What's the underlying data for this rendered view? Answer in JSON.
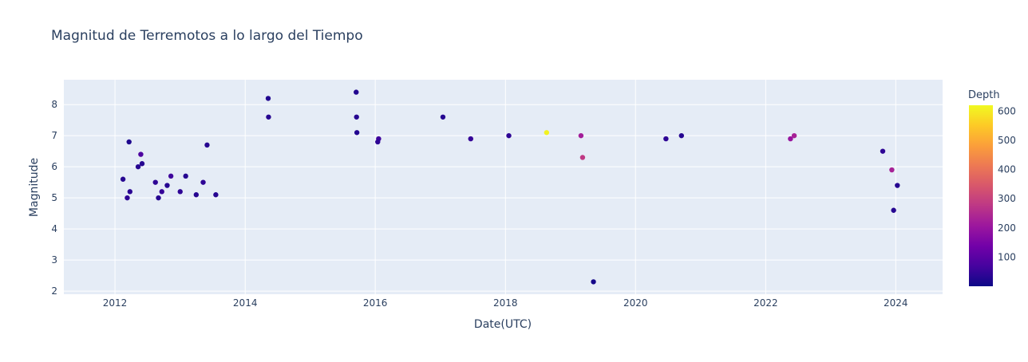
{
  "chart_data": {
    "type": "scatter",
    "title": "Magnitud de Terremotos a lo largo del Tiempo",
    "xlabel": "Date(UTC)",
    "ylabel": "Magnitude",
    "x_ticks": [
      "2012",
      "2014",
      "2016",
      "2018",
      "2020",
      "2022",
      "2024"
    ],
    "y_ticks": [
      2,
      3,
      4,
      5,
      6,
      7,
      8
    ],
    "xlim": [
      "2011-03-20",
      "2024-09-20"
    ],
    "ylim": [
      1.9,
      8.8
    ],
    "grid": true,
    "colorbar": {
      "title": "Depth",
      "range": [
        0,
        620
      ],
      "ticks": [
        100,
        200,
        300,
        400,
        500,
        600
      ],
      "colorscale": [
        "#0d0887",
        "#46039f",
        "#7201a8",
        "#9c179e",
        "#bd3786",
        "#d8576b",
        "#ed7953",
        "#fb9f3a",
        "#fdca26",
        "#f0f921"
      ]
    },
    "points": [
      {
        "x": "2012-02-15",
        "y": 5.6,
        "d": 30
      },
      {
        "x": "2012-03-10",
        "y": 5.0,
        "d": 40
      },
      {
        "x": "2012-03-20",
        "y": 6.8,
        "d": 20
      },
      {
        "x": "2012-03-25",
        "y": 5.2,
        "d": 35
      },
      {
        "x": "2012-05-10",
        "y": 6.0,
        "d": 30
      },
      {
        "x": "2012-05-25",
        "y": 6.4,
        "d": 80
      },
      {
        "x": "2012-06-01",
        "y": 6.1,
        "d": 30
      },
      {
        "x": "2012-08-15",
        "y": 5.5,
        "d": 40
      },
      {
        "x": "2012-09-01",
        "y": 5.0,
        "d": 30
      },
      {
        "x": "2012-09-20",
        "y": 5.2,
        "d": 50
      },
      {
        "x": "2012-10-20",
        "y": 5.4,
        "d": 30
      },
      {
        "x": "2012-11-10",
        "y": 5.7,
        "d": 60
      },
      {
        "x": "2013-01-01",
        "y": 5.2,
        "d": 40
      },
      {
        "x": "2013-02-01",
        "y": 5.7,
        "d": 30
      },
      {
        "x": "2013-04-01",
        "y": 5.1,
        "d": 30
      },
      {
        "x": "2013-05-10",
        "y": 5.5,
        "d": 40
      },
      {
        "x": "2013-06-01",
        "y": 6.7,
        "d": 30
      },
      {
        "x": "2013-07-20",
        "y": 5.1,
        "d": 30
      },
      {
        "x": "2014-05-10",
        "y": 8.2,
        "d": 25
      },
      {
        "x": "2014-05-12",
        "y": 7.6,
        "d": 30
      },
      {
        "x": "2015-09-16",
        "y": 8.4,
        "d": 25
      },
      {
        "x": "2015-09-18",
        "y": 7.6,
        "d": 30
      },
      {
        "x": "2015-09-20",
        "y": 7.1,
        "d": 25
      },
      {
        "x": "2016-01-20",
        "y": 6.9,
        "d": 60
      },
      {
        "x": "2016-01-15",
        "y": 6.8,
        "d": 40
      },
      {
        "x": "2017-01-15",
        "y": 7.6,
        "d": 30
      },
      {
        "x": "2017-06-20",
        "y": 6.9,
        "d": 50
      },
      {
        "x": "2018-01-20",
        "y": 7.0,
        "d": 40
      },
      {
        "x": "2018-08-20",
        "y": 7.1,
        "d": 610
      },
      {
        "x": "2019-05-10",
        "y": 2.3,
        "d": 10
      },
      {
        "x": "2019-03-01",
        "y": 7.0,
        "d": 220
      },
      {
        "x": "2019-03-10",
        "y": 6.3,
        "d": 280
      },
      {
        "x": "2020-06-20",
        "y": 6.9,
        "d": 40
      },
      {
        "x": "2020-09-15",
        "y": 7.0,
        "d": 30
      },
      {
        "x": "2022-05-20",
        "y": 6.9,
        "d": 200
      },
      {
        "x": "2022-06-10",
        "y": 7.0,
        "d": 230
      },
      {
        "x": "2023-10-20",
        "y": 6.5,
        "d": 40
      },
      {
        "x": "2023-12-10",
        "y": 5.9,
        "d": 230
      },
      {
        "x": "2024-01-10",
        "y": 5.4,
        "d": 30
      },
      {
        "x": "2023-12-20",
        "y": 4.6,
        "d": 30
      }
    ]
  }
}
